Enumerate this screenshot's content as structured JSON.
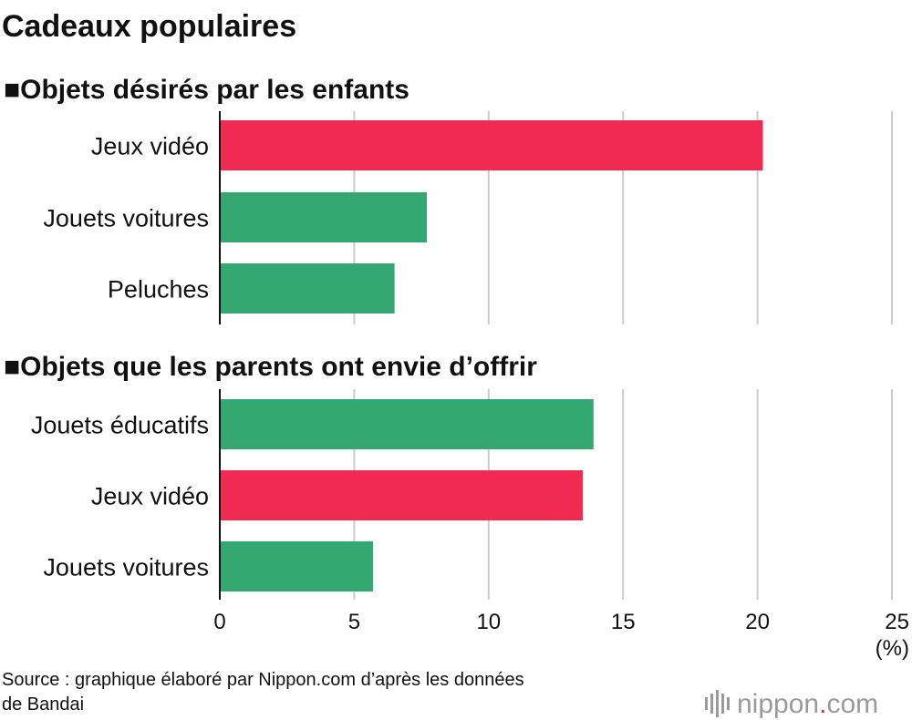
{
  "title": "Cadeaux populaires",
  "source_lines": [
    "Source : graphique élaboré par Nippon.com d’après les données",
    "de Bandai"
  ],
  "logo": {
    "text": "nippon",
    "dot": ".",
    "suffix": "com",
    "dot_color": "#e8283c"
  },
  "colors": {
    "highlight": "#f02a50",
    "default": "#35a771",
    "grid": "#cccccc",
    "axis": "#111111"
  },
  "chart_data": [
    {
      "type": "bar",
      "orientation": "horizontal",
      "subtitle": "■Objets désirés par les enfants",
      "categories": [
        "Jeux vidéo",
        "Jouets voitures",
        "Peluches"
      ],
      "values": [
        20.2,
        7.7,
        6.5
      ],
      "highlight": [
        true,
        false,
        false
      ],
      "xlim": [
        0,
        25
      ],
      "xticks": [
        0,
        5,
        10,
        15,
        20,
        25
      ],
      "grid": true
    },
    {
      "type": "bar",
      "orientation": "horizontal",
      "subtitle": "■Objets que les parents ont envie d’offrir",
      "categories": [
        "Jouets éducatifs",
        "Jeux vidéo",
        "Jouets voitures"
      ],
      "values": [
        13.9,
        13.5,
        5.7
      ],
      "highlight": [
        false,
        true,
        false
      ],
      "xlim": [
        0,
        25
      ],
      "xticks": [
        0,
        5,
        10,
        15,
        20,
        25
      ],
      "tick_labels": [
        "0",
        "5",
        "10",
        "15",
        "20",
        "25"
      ],
      "unit": "(%)",
      "grid": true
    }
  ]
}
